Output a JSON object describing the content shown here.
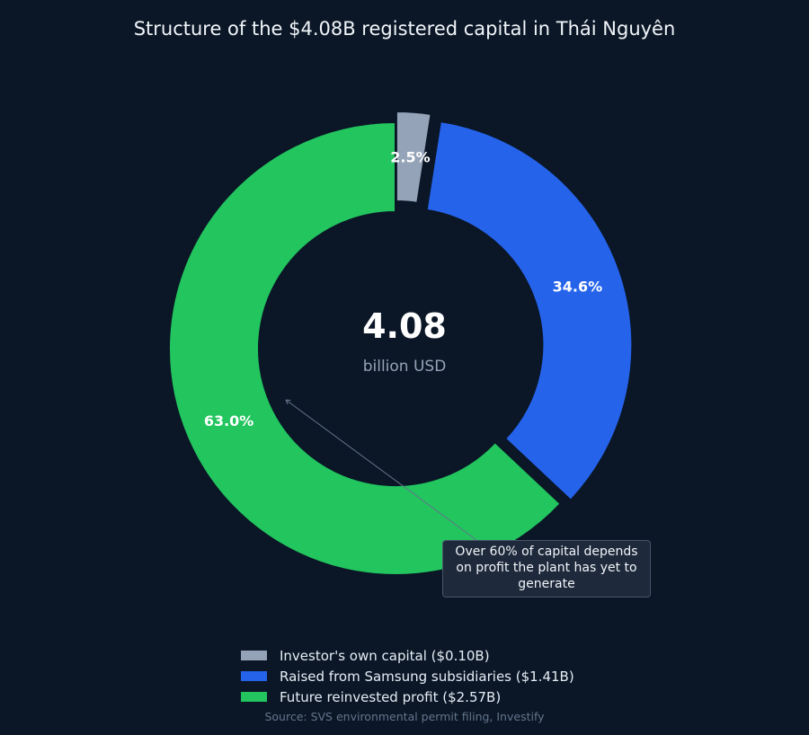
{
  "chart_data": {
    "type": "pie",
    "variant": "donut",
    "title": "Structure of the $4.08B registered capital in Thái Nguyên",
    "center": {
      "value": "4.08",
      "unit": "billion USD"
    },
    "slices": [
      {
        "name": "Investor's own capital ($0.10B)",
        "value": 0.1,
        "percent": 2.5,
        "label": "2.5%",
        "color": "#94a3b8",
        "exploded": true
      },
      {
        "name": "Raised from Samsung subsidiaries ($1.41B)",
        "value": 1.41,
        "percent": 34.6,
        "label": "34.6%",
        "color": "#2563eb",
        "exploded": true
      },
      {
        "name": "Future reinvested profit ($2.57B)",
        "value": 2.57,
        "percent": 63.0,
        "label": "63.0%",
        "color": "#22c55e",
        "exploded": false
      }
    ],
    "annotation": {
      "text": "Over 60% of capital depends on profit the plant has yet to generate",
      "target_slice": "Future reinvested profit ($2.57B)"
    },
    "legend": {
      "position": "bottom-center"
    },
    "source": "Source: SVS environmental permit filing, Investify"
  },
  "colors": {
    "background": "#0b1727",
    "annotation_box": "#1e293b",
    "annotation_border": "#475569"
  }
}
